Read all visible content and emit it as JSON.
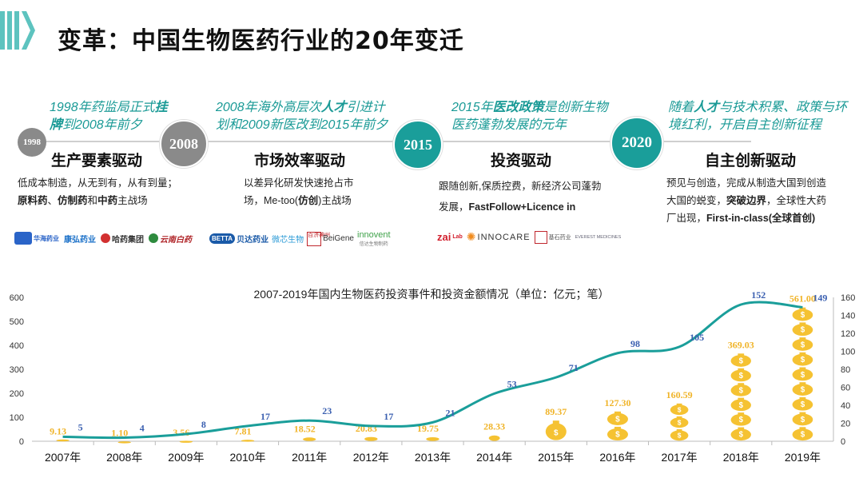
{
  "title": "变革：中国生物医药行业的20年变迁",
  "eras": [
    {
      "year": "1998",
      "desc_parts": [
        "1998年药监局正式",
        "挂牌",
        "到2008年前夕"
      ],
      "heading": "生产要素驱动",
      "body_line1": "低成本制造，从无到有，从有到量；",
      "body_b1": "原料药",
      "body_sep1": "、",
      "body_b2": "仿制药",
      "body_sep2": "和",
      "body_b3": "中药",
      "body_end": "主战场",
      "logos": [
        "华海药业",
        "康弘药业",
        "哈药集团",
        "云南白药"
      ]
    },
    {
      "year": "2008",
      "desc_parts": [
        "2008年海外高层次",
        "人才",
        "引进计划和2009新医改到2015年前夕"
      ],
      "heading": "市场效率驱动",
      "body_line1": "以差异化研发快速抢占市",
      "body_line2a": "场，Me-too(",
      "body_b1": "仿创",
      "body_line2b": ")主战场",
      "logos": [
        "BETTA",
        "贝达药业",
        "微芯生物",
        "百济神州",
        "BeiGene",
        "innovent",
        "信达生物制药"
      ]
    },
    {
      "year": "2015",
      "desc_parts": [
        "2015年",
        "医改政策",
        "是创新生物医药蓬勃发展的元年"
      ],
      "heading": "投资驱动",
      "body_line1": "跟随创新,保质控费，新经济公司蓬勃",
      "body_line2a": "发展，",
      "body_b1": "FastFollow+Licence in",
      "logos": [
        "zai",
        "Lab",
        "INNOCARE",
        "基石药业",
        "EVEREST MEDICINES"
      ]
    },
    {
      "year": "2020",
      "desc_parts": [
        "随着",
        "人才",
        "与技术积累、政策与环境红利，开启自主创新征程"
      ],
      "heading": "自主创新驱动",
      "body_line1": "预见与创造，完成从制造大国到创造",
      "body_line2a": "大国的蜕变，",
      "body_b1": "突破边界",
      "body_line2b": "，全球性大药",
      "body_line3a": "厂出现，",
      "body_b2": "First-in-class(全球首创)",
      "logos": []
    }
  ],
  "chart_data": {
    "type": "bar+line",
    "title": "2007-2019年国内生物医药投资事件和投资金额情况（单位：亿元；笔）",
    "categories": [
      "2007年",
      "2008年",
      "2009年",
      "2010年",
      "2011年",
      "2012年",
      "2013年",
      "2014年",
      "2015年",
      "2016年",
      "2017年",
      "2018年",
      "2019年"
    ],
    "series": [
      {
        "name": "投资金额",
        "axis": "left",
        "values": [
          9.13,
          1.1,
          3.56,
          7.81,
          18.52,
          20.83,
          19.75,
          28.33,
          89.37,
          127.3,
          160.59,
          369.03,
          561.0
        ],
        "labels": [
          "9.13",
          "1.10",
          "3.56",
          "7.81",
          "18.52",
          "20.83",
          "19.75",
          "28.33",
          "89.37",
          "127.30",
          "160.59",
          "369.03",
          "561.00"
        ]
      },
      {
        "name": "投资事件",
        "axis": "right",
        "values": [
          5,
          4,
          8,
          17,
          23,
          17,
          21,
          53,
          71,
          98,
          105,
          152,
          149
        ]
      }
    ],
    "y_left": {
      "min": 0,
      "max": 600,
      "ticks": [
        0,
        100,
        200,
        300,
        400,
        500,
        600
      ]
    },
    "y_right": {
      "min": 0,
      "max": 160,
      "ticks": [
        0,
        20,
        40,
        60,
        80,
        100,
        120,
        140,
        160
      ]
    },
    "colors": {
      "line": "#1a9e9a",
      "count_label": "#3a5fb0",
      "amount_label": "#f0b429",
      "bag": "#f5c232",
      "axis": "#777777"
    }
  }
}
